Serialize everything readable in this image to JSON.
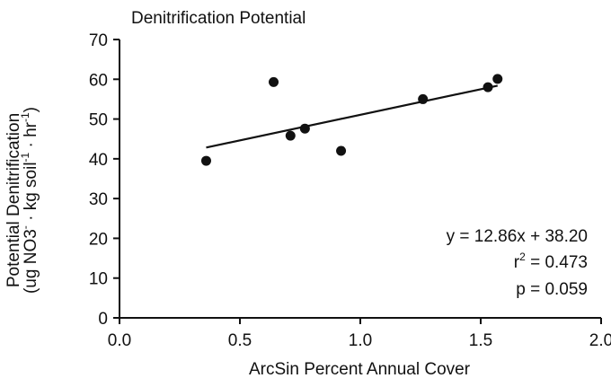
{
  "chart_data": {
    "type": "scatter",
    "title": "Denitrification Potential",
    "xlabel": "ArcSin Percent Annual Cover",
    "ylabel_line1": "Potential Denitrification",
    "ylabel_line2": {
      "prefix": "(ug NO",
      "sub": "3",
      "sup_a": "-",
      "mid": " · kg soil",
      "sup_b": "-1",
      "mid2": " · hr",
      "sup_c": "-1",
      "suffix": ")"
    },
    "xlim": [
      0.0,
      2.0
    ],
    "ylim": [
      0,
      70
    ],
    "xticks": [
      0.0,
      0.5,
      1.0,
      1.5,
      2.0
    ],
    "xtick_labels": [
      "0.0",
      "0.5",
      "1.0",
      "1.5",
      "2.0"
    ],
    "yticks": [
      0,
      10,
      20,
      30,
      40,
      50,
      60,
      70
    ],
    "ytick_labels": [
      "0",
      "10",
      "20",
      "30",
      "40",
      "50",
      "60",
      "70"
    ],
    "series": [
      {
        "points": [
          {
            "x": 0.36,
            "y": 39.5
          },
          {
            "x": 0.64,
            "y": 59.3
          },
          {
            "x": 0.71,
            "y": 45.8
          },
          {
            "x": 0.77,
            "y": 47.6
          },
          {
            "x": 0.92,
            "y": 42.0
          },
          {
            "x": 1.26,
            "y": 55.0
          },
          {
            "x": 1.53,
            "y": 58.0
          },
          {
            "x": 1.57,
            "y": 60.1
          }
        ]
      }
    ],
    "regression": {
      "slope": 12.86,
      "intercept": 38.2,
      "x_range": [
        0.36,
        1.57
      ]
    },
    "annotations": {
      "equation": "y = 12.86x + 38.20",
      "r2_prefix": "r",
      "r2_sup": "2",
      "r2_value": " = 0.473",
      "p_value": "p = 0.059"
    }
  }
}
